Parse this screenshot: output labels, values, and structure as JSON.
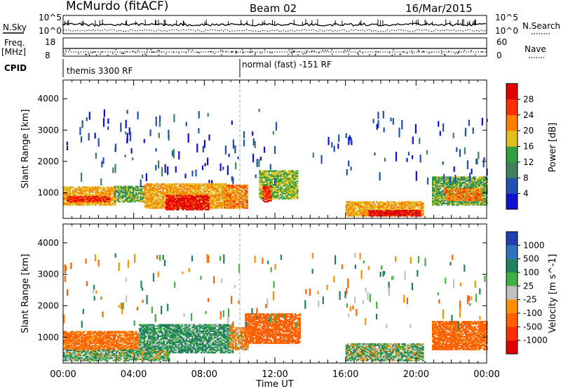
{
  "header": {
    "station": "McMurdo (fitACF)",
    "beam": "Beam 02",
    "date": "16/Mar/2015"
  },
  "top_panels": {
    "nsky_label": "N.Sky",
    "nsky_ticks": [
      "10^5",
      "10^0"
    ],
    "freq_label_1": "Freq.",
    "freq_label_2": "[MHz]",
    "freq_ticks": [
      "18",
      "8"
    ],
    "nsearch_label": "N.Search",
    "nsearch_ticks": [
      "10^5",
      "10^0"
    ],
    "nave_label": "Nave",
    "nave_ticks": [
      "60",
      "0"
    ],
    "cpid_label": "CPID",
    "cpid_modes": [
      {
        "label": "themis 3300 RF",
        "start_hour": 0,
        "end_hour": 10
      },
      {
        "label": "normal (fast) -151 RF",
        "start_hour": 10,
        "end_hour": 24
      }
    ]
  },
  "colors": {
    "power_scale": [
      "#1010d0",
      "#2050b0",
      "#408060",
      "#30a040",
      "#e0c020",
      "#ff8000",
      "#ff3000",
      "#e00000"
    ],
    "velocity_scale": [
      "#2040b0",
      "#3070c0",
      "#208060",
      "#40b040",
      "#c0c0c0",
      "#ff9000",
      "#ff6000",
      "#ff3000",
      "#e00000"
    ]
  },
  "chart_data": [
    {
      "type": "heatmap",
      "name": "power",
      "ylabel": "Slant Range [km]",
      "xlabel": "",
      "x_range_hours": [
        0,
        24
      ],
      "ylim": [
        180,
        4600
      ],
      "y_ticks": [
        1000,
        2000,
        3000,
        4000
      ],
      "colorbar_label": "Power [dB]",
      "colorbar_ticks": [
        "4",
        "8",
        "12",
        "16",
        "20",
        "24",
        "28"
      ],
      "colorbar_range": [
        0,
        32
      ],
      "regions": [
        {
          "t0": 0.0,
          "t1": 2.9,
          "r0": 600,
          "r1": 1200,
          "value": 20
        },
        {
          "t0": 0.2,
          "t1": 2.6,
          "r0": 700,
          "r1": 900,
          "value": 27
        },
        {
          "t0": 2.9,
          "t1": 4.6,
          "r0": 700,
          "r1": 1200,
          "value": 14
        },
        {
          "t0": 4.6,
          "t1": 9.4,
          "r0": 500,
          "r1": 1300,
          "value": 20
        },
        {
          "t0": 5.8,
          "t1": 8.2,
          "r0": 450,
          "r1": 900,
          "value": 30
        },
        {
          "t0": 9.1,
          "t1": 10.4,
          "r0": 500,
          "r1": 1250,
          "value": 22
        },
        {
          "t0": 11.1,
          "t1": 13.3,
          "r0": 800,
          "r1": 1700,
          "value": 16
        },
        {
          "t0": 11.3,
          "t1": 11.8,
          "r0": 700,
          "r1": 1200,
          "value": 27
        },
        {
          "t0": 16.0,
          "t1": 20.4,
          "r0": 250,
          "r1": 700,
          "value": 20
        },
        {
          "t0": 17.3,
          "t1": 20.2,
          "r0": 250,
          "r1": 450,
          "value": 30
        },
        {
          "t0": 20.9,
          "t1": 24.0,
          "r0": 600,
          "r1": 1500,
          "value": 14
        },
        {
          "t0": 21.6,
          "t1": 23.7,
          "r0": 750,
          "r1": 1150,
          "value": 22
        }
      ]
    },
    {
      "type": "heatmap",
      "name": "velocity",
      "ylabel": "Slant Range [km]",
      "xlabel": "Time UT",
      "x_range_hours": [
        0,
        24
      ],
      "x_ticks": [
        "00:00",
        "04:00",
        "08:00",
        "12:00",
        "16:00",
        "20:00",
        "00:00"
      ],
      "ylim": [
        180,
        4600
      ],
      "y_ticks": [
        1000,
        2000,
        3000,
        4000
      ],
      "colorbar_label": "Velocity [m s^-1]",
      "colorbar_ticks": [
        "1000",
        "500",
        "100",
        "25",
        "-25",
        "-100",
        "-500",
        "-1000"
      ],
      "regions": [
        {
          "t0": 0.0,
          "t1": 4.3,
          "r0": 600,
          "r1": 1200,
          "value": -150
        },
        {
          "t0": 4.3,
          "t1": 9.6,
          "r0": 500,
          "r1": 1400,
          "value": 120
        },
        {
          "t0": 9.4,
          "t1": 10.5,
          "r0": 600,
          "r1": 1300,
          "value": -80
        },
        {
          "t0": 10.3,
          "t1": 13.4,
          "r0": 800,
          "r1": 1750,
          "value": -300
        },
        {
          "t0": 16.0,
          "t1": 20.4,
          "r0": 250,
          "r1": 800,
          "value": 60
        },
        {
          "t0": 20.9,
          "t1": 24.0,
          "r0": 600,
          "r1": 1500,
          "value": -200
        },
        {
          "t0": 0.0,
          "t1": 6.0,
          "r0": 250,
          "r1": 600,
          "value": 60
        }
      ]
    }
  ]
}
